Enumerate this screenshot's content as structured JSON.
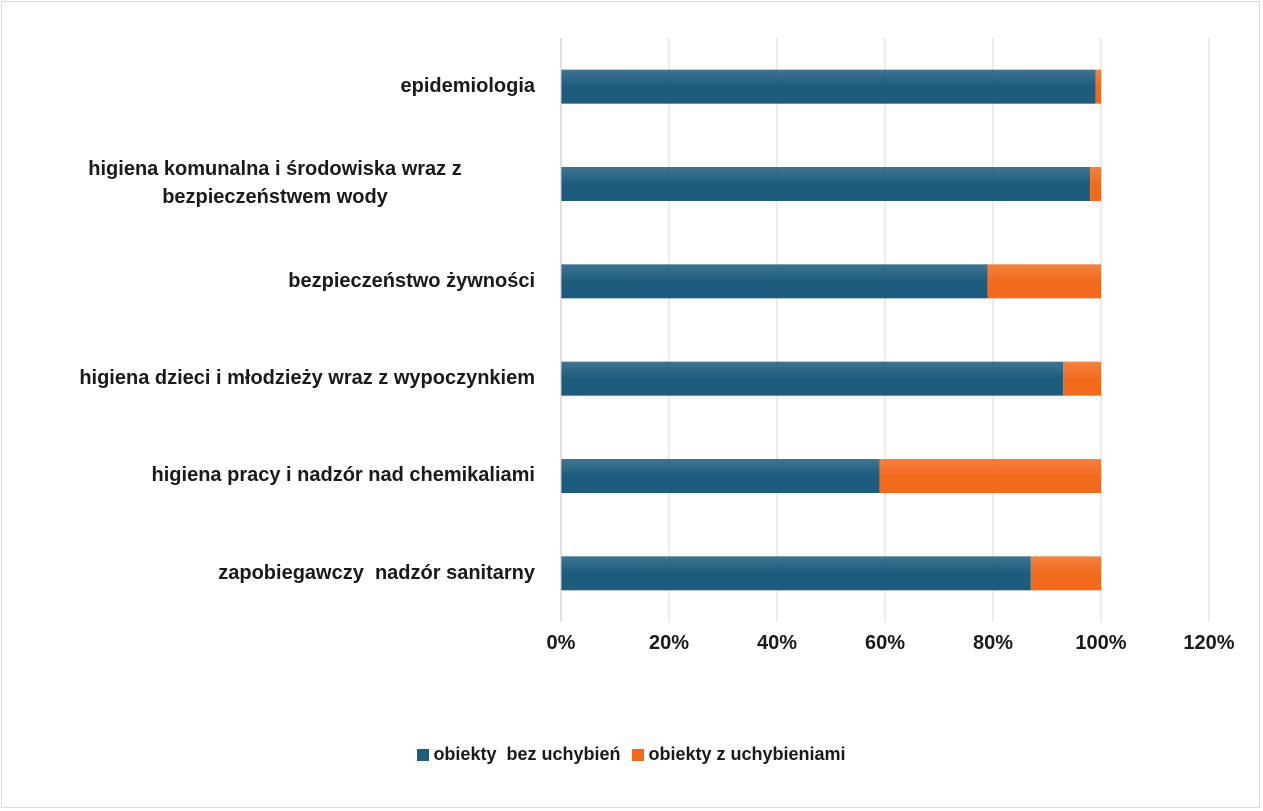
{
  "chart_data": {
    "type": "bar_stacked_horizontal",
    "categories": [
      "epidemiologia",
      "higiena komunalna i środowiska wraz z bezpieczeństwem wody",
      "bezpieczeństwo żywności",
      "higiena dzieci i młodzieży wraz z wypoczynkiem",
      "higiena pracy i nadzór nad chemikaliami",
      "zapobiegawczy  nadzór sanitarny"
    ],
    "series": [
      {
        "name": "obiekty  bez uchybień",
        "color": "#1d5c7d",
        "values": [
          99,
          98,
          79,
          93,
          59,
          87
        ]
      },
      {
        "name": "obiekty z uchybieniami",
        "color": "#f26b1d",
        "values": [
          1,
          2,
          21,
          7,
          41,
          13
        ]
      }
    ],
    "xlim": [
      0,
      120
    ],
    "xticks": [
      {
        "value": 0,
        "label": "0%"
      },
      {
        "value": 20,
        "label": "20%"
      },
      {
        "value": 40,
        "label": "40%"
      },
      {
        "value": 60,
        "label": "60%"
      },
      {
        "value": 80,
        "label": "80%"
      },
      {
        "value": 100,
        "label": "100%"
      },
      {
        "value": 120,
        "label": "120%"
      }
    ],
    "grid": true,
    "legend": "bottom"
  }
}
